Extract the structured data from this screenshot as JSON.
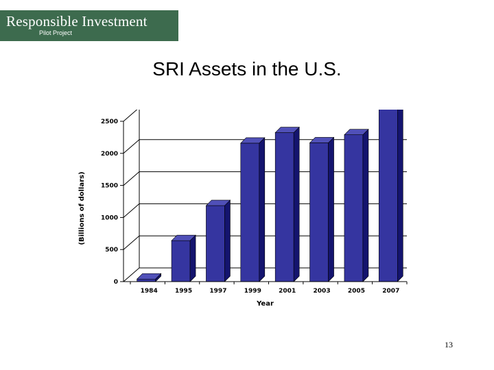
{
  "header": {
    "logo_title": "Responsible Investment",
    "logo_subtitle": "Pilot Project"
  },
  "slide": {
    "title": "SRI Assets in the U.S.",
    "page_number": "13"
  },
  "colors": {
    "bar_front": "#3535a0",
    "bar_side": "#14146e",
    "bar_top": "#5050b8",
    "logo_bg": "#3d6b4e"
  },
  "chart_data": {
    "type": "bar",
    "style": "3d",
    "categories": [
      "1984",
      "1995",
      "1997",
      "1999",
      "2001",
      "2003",
      "2005",
      "2007"
    ],
    "values": [
      40,
      639,
      1185,
      2159,
      2323,
      2164,
      2290,
      2711
    ],
    "title": "",
    "xlabel": "Year",
    "ylabel": "(Billions of dollars)",
    "ylim": [
      0,
      2500
    ],
    "yticks": [
      0,
      500,
      1000,
      1500,
      2000,
      2500
    ],
    "grid": true,
    "legend": "none"
  }
}
